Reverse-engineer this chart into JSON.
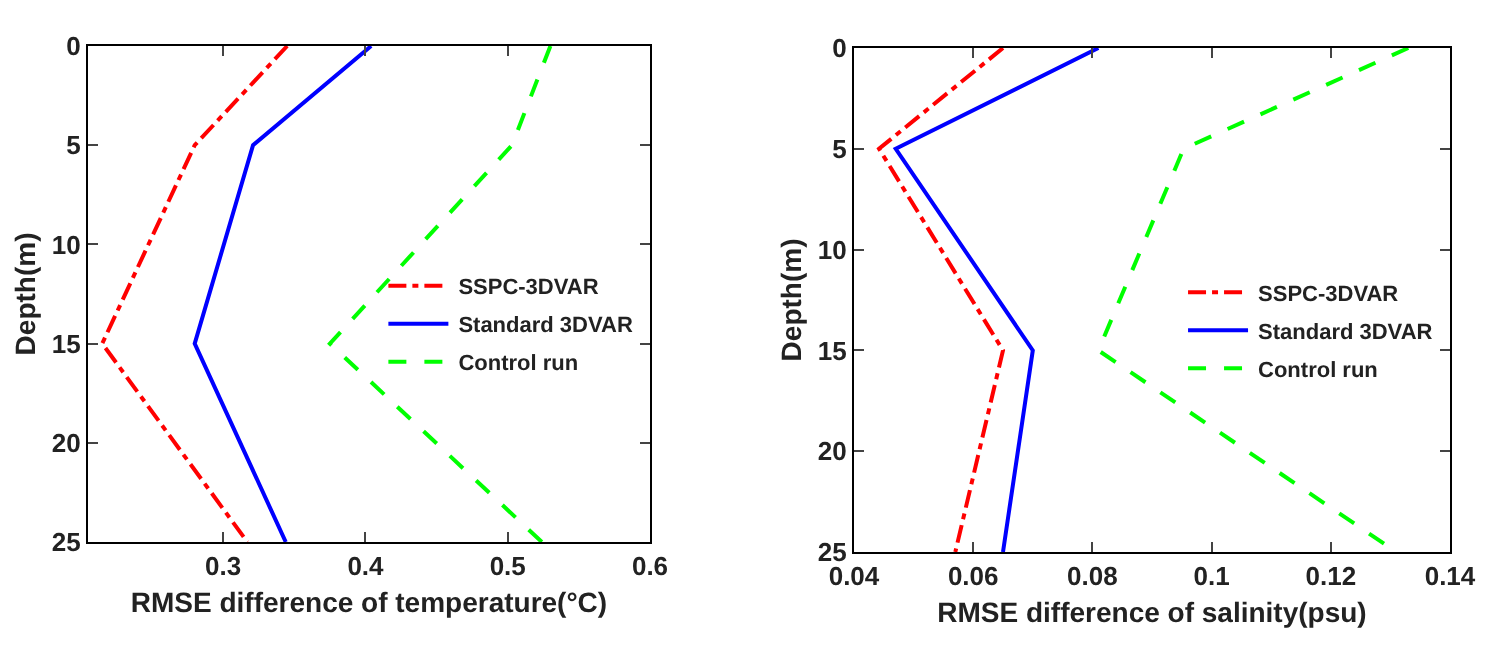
{
  "chart_data": [
    {
      "type": "line",
      "xlabel": "RMSE difference of temperature(°C)",
      "ylabel": "Depth(m)",
      "xlim": [
        0.205,
        0.6
      ],
      "xticks": [
        0.3,
        0.4,
        0.5,
        0.6
      ],
      "ylim": [
        25,
        0
      ],
      "yticks": [
        0,
        5,
        10,
        15,
        20,
        25
      ],
      "grid": false,
      "legend": "right",
      "series": [
        {
          "name": "SSPC-3DVAR",
          "color": "#ff0000",
          "line_style": "dashdot",
          "x": [
            0.345,
            0.28,
            0.215,
            0.317
          ],
          "values": [
            0,
            5,
            15,
            25
          ]
        },
        {
          "name": "Standard 3DVAR",
          "color": "#0000ff",
          "line_style": "solid",
          "x": [
            0.404,
            0.321,
            0.28,
            0.344
          ],
          "values": [
            0,
            5,
            15,
            25
          ]
        },
        {
          "name": "Control run",
          "color": "#00ff00",
          "line_style": "dashed",
          "x": [
            0.53,
            0.503,
            0.375,
            0.524
          ],
          "values": [
            0,
            5,
            15,
            25
          ]
        }
      ]
    },
    {
      "type": "line",
      "xlabel": "RMSE difference of salinity(psu)",
      "ylabel": "Depth(m)",
      "xlim": [
        0.04,
        0.14
      ],
      "xticks": [
        0.04,
        0.06,
        0.08,
        0.1,
        0.12,
        0.14
      ],
      "ylim": [
        25,
        0
      ],
      "yticks": [
        0,
        5,
        10,
        15,
        20,
        25
      ],
      "grid": false,
      "legend": "right",
      "series": [
        {
          "name": "SSPC-3DVAR",
          "color": "#ff0000",
          "line_style": "dashdot",
          "x": [
            0.065,
            0.0442,
            0.065,
            0.057
          ],
          "values": [
            0,
            5,
            15,
            25
          ]
        },
        {
          "name": "Standard 3DVAR",
          "color": "#0000ff",
          "line_style": "solid",
          "x": [
            0.081,
            0.047,
            0.07,
            0.065
          ],
          "values": [
            0,
            5,
            15,
            25
          ]
        },
        {
          "name": "Control run",
          "color": "#00ff00",
          "line_style": "dashed",
          "x": [
            0.133,
            0.0953,
            0.081,
            0.131
          ],
          "values": [
            0,
            5,
            15,
            25
          ]
        }
      ]
    }
  ]
}
